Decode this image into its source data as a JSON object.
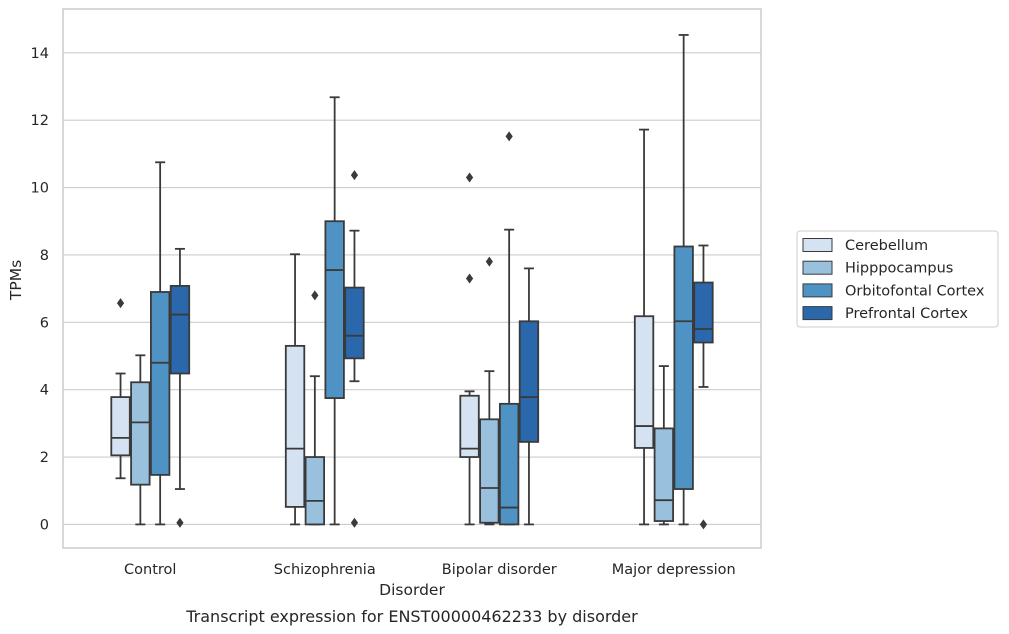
{
  "chart_data": {
    "type": "boxplot",
    "caption": "Transcript expression for ENST00000462233 by disorder",
    "xlabel": "Disorder",
    "ylabel": "TPMs",
    "ylim": [
      -0.7,
      15.3
    ],
    "yticks": [
      0,
      2,
      4,
      6,
      8,
      10,
      12,
      14
    ],
    "grid": true,
    "legend_position": "right",
    "categories": [
      "Control",
      "Schizophrenia",
      "Bipolar disorder",
      "Major depression"
    ],
    "series": [
      {
        "name": "Cerebellum",
        "color": "#d4e2f1",
        "boxes": [
          {
            "whislo": 1.37,
            "q1": 2.05,
            "med": 2.57,
            "q3": 3.78,
            "whishi": 4.48,
            "fliers": [
              6.57
            ]
          },
          {
            "whislo": 0.0,
            "q1": 0.52,
            "med": 2.25,
            "q3": 5.3,
            "whishi": 8.02,
            "fliers": []
          },
          {
            "whislo": 0.0,
            "q1": 2.0,
            "med": 2.25,
            "q3": 3.82,
            "whishi": 3.95,
            "fliers": [
              7.3,
              10.3
            ]
          },
          {
            "whislo": 0.0,
            "q1": 2.27,
            "med": 2.92,
            "q3": 6.18,
            "whishi": 11.72,
            "fliers": []
          }
        ]
      },
      {
        "name": "Hipppocampus",
        "color": "#99c1dd",
        "boxes": [
          {
            "whislo": 0.0,
            "q1": 1.18,
            "med": 3.03,
            "q3": 4.22,
            "whishi": 5.02,
            "fliers": []
          },
          {
            "whislo": 0.0,
            "q1": 0.0,
            "med": 0.7,
            "q3": 2.0,
            "whishi": 4.4,
            "fliers": [
              6.8
            ]
          },
          {
            "whislo": 0.0,
            "q1": 0.05,
            "med": 1.08,
            "q3": 3.12,
            "whishi": 4.55,
            "fliers": [
              7.8
            ]
          },
          {
            "whislo": 0.0,
            "q1": 0.1,
            "med": 0.72,
            "q3": 2.85,
            "whishi": 4.7,
            "fliers": []
          }
        ]
      },
      {
        "name": "Orbitofontal Cortex",
        "color": "#4f93c4",
        "boxes": [
          {
            "whislo": 0.0,
            "q1": 1.47,
            "med": 4.8,
            "q3": 6.9,
            "whishi": 10.75,
            "fliers": []
          },
          {
            "whislo": 0.0,
            "q1": 3.75,
            "med": 7.55,
            "q3": 9.0,
            "whishi": 12.68,
            "fliers": []
          },
          {
            "whislo": 0.0,
            "q1": 0.0,
            "med": 0.5,
            "q3": 3.58,
            "whishi": 8.75,
            "fliers": [
              11.52
            ]
          },
          {
            "whislo": 0.0,
            "q1": 1.05,
            "med": 6.03,
            "q3": 8.25,
            "whishi": 14.53,
            "fliers": []
          }
        ]
      },
      {
        "name": "Prefrontal Cortex",
        "color": "#2a67ab",
        "boxes": [
          {
            "whislo": 1.05,
            "q1": 4.48,
            "med": 6.23,
            "q3": 7.08,
            "whishi": 8.18,
            "fliers": [
              0.05
            ]
          },
          {
            "whislo": 4.25,
            "q1": 4.93,
            "med": 5.6,
            "q3": 7.03,
            "whishi": 8.72,
            "fliers": [
              0.05,
              10.37
            ]
          },
          {
            "whislo": 0.0,
            "q1": 2.45,
            "med": 3.78,
            "q3": 6.03,
            "whishi": 7.6,
            "fliers": []
          },
          {
            "whislo": 4.08,
            "q1": 5.4,
            "med": 5.8,
            "q3": 7.18,
            "whishi": 8.28,
            "fliers": [
              0.0
            ]
          }
        ]
      }
    ]
  }
}
